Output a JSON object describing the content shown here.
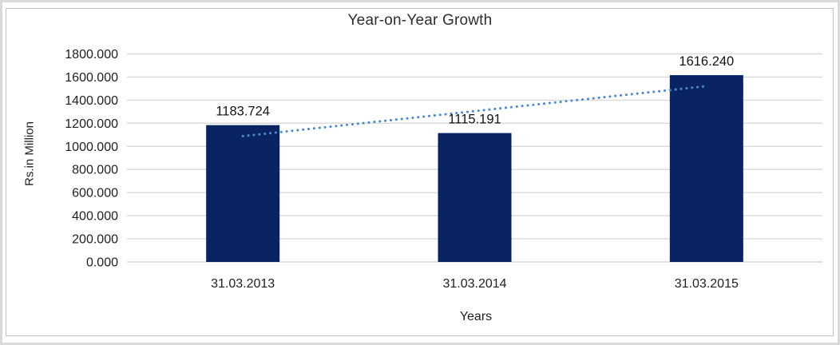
{
  "chart_data": {
    "type": "bar",
    "title": "Year-on-Year Growth",
    "xlabel": "Years",
    "ylabel": "Rs.in Million",
    "categories": [
      "31.03.2013",
      "31.03.2014",
      "31.03.2015"
    ],
    "values": [
      1183.724,
      1115.191,
      1616.24
    ],
    "data_labels": [
      "1183.724",
      "1115.191",
      "1616.240"
    ],
    "ylim": [
      0,
      1800
    ],
    "y_tick_step": 200,
    "y_tick_labels": [
      "0.000",
      "200.000",
      "400.000",
      "600.000",
      "800.000",
      "1000.000",
      "1200.000",
      "1400.000",
      "1600.000",
      "1800.000"
    ],
    "grid": true,
    "legend": "none",
    "trendline": {
      "type": "linear",
      "style": "dotted",
      "endpoint_values": [
        1088.8,
        1521.3
      ]
    },
    "colors": {
      "bar": "#0A2463",
      "trendline": "#5089C9",
      "gridline": "#D9D9D9",
      "tick_text": "#1F1F1F",
      "label_text": "#141414",
      "frame_border": "#C3C3C3",
      "outer_edge": "#D9D9D9",
      "background": "#FFFFFF"
    }
  }
}
